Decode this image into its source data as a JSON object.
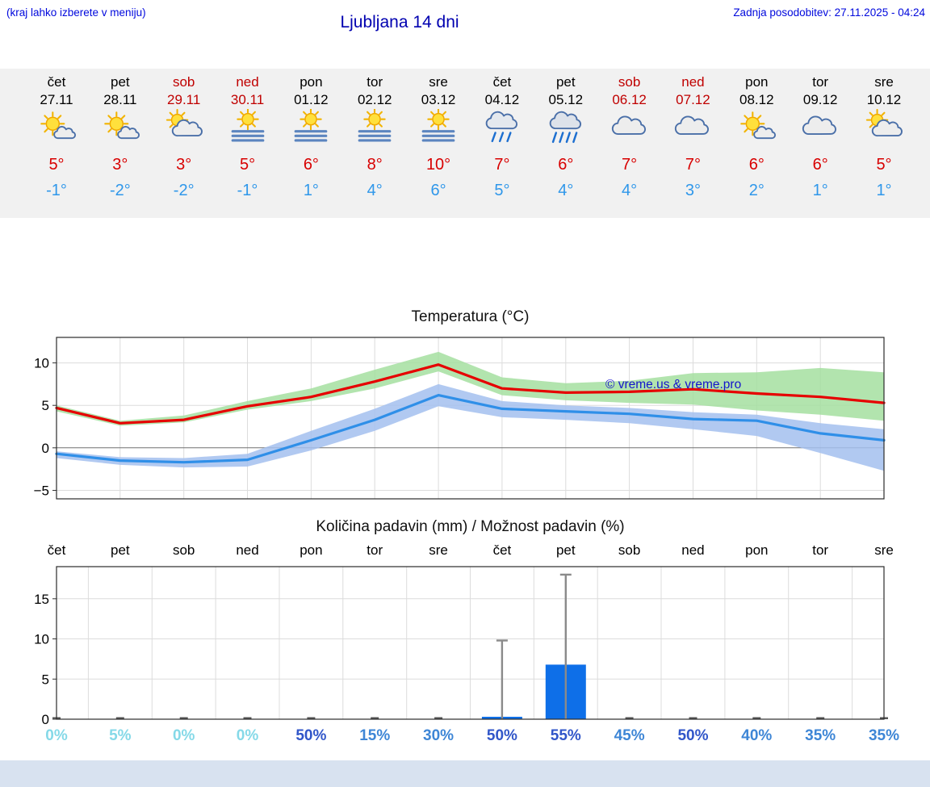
{
  "header": {
    "site_note": "(kraj lahko izberete v meniju)",
    "title": "Ljubljana 14 dni",
    "last_update": "Zadnja posodobitev: 27.11.2025 - 04:24"
  },
  "forecast_days": [
    {
      "name": "čet",
      "date": "27.11",
      "red": false,
      "icon": "sun-small-cloud",
      "high": "5°",
      "low": "-1°"
    },
    {
      "name": "pet",
      "date": "28.11",
      "red": false,
      "icon": "sun-small-cloud",
      "high": "3°",
      "low": "-2°"
    },
    {
      "name": "sob",
      "date": "29.11",
      "red": true,
      "icon": "cloud-sun",
      "high": "3°",
      "low": "-2°"
    },
    {
      "name": "ned",
      "date": "30.11",
      "red": true,
      "icon": "fog-sun",
      "high": "5°",
      "low": "-1°"
    },
    {
      "name": "pon",
      "date": "01.12",
      "red": false,
      "icon": "fog-sun",
      "high": "6°",
      "low": "1°"
    },
    {
      "name": "tor",
      "date": "02.12",
      "red": false,
      "icon": "fog-sun",
      "high": "8°",
      "low": "4°"
    },
    {
      "name": "sre",
      "date": "03.12",
      "red": false,
      "icon": "fog-sun",
      "high": "10°",
      "low": "6°"
    },
    {
      "name": "čet",
      "date": "04.12",
      "red": false,
      "icon": "rain",
      "high": "7°",
      "low": "5°"
    },
    {
      "name": "pet",
      "date": "05.12",
      "red": false,
      "icon": "heavy-rain",
      "high": "6°",
      "low": "4°"
    },
    {
      "name": "sob",
      "date": "06.12",
      "red": true,
      "icon": "cloud",
      "high": "7°",
      "low": "4°"
    },
    {
      "name": "ned",
      "date": "07.12",
      "red": true,
      "icon": "cloud",
      "high": "7°",
      "low": "3°"
    },
    {
      "name": "pon",
      "date": "08.12",
      "red": false,
      "icon": "sun-small-cloud",
      "high": "6°",
      "low": "2°"
    },
    {
      "name": "tor",
      "date": "09.12",
      "red": false,
      "icon": "cloud",
      "high": "6°",
      "low": "1°"
    },
    {
      "name": "sre",
      "date": "10.12",
      "red": false,
      "icon": "cloud-sun",
      "high": "5°",
      "low": "1°"
    }
  ],
  "chart_data": [
    {
      "type": "line",
      "title": "Temperatura (°C)",
      "ylim": [
        -6,
        13
      ],
      "yticks": [
        -5,
        0,
        5,
        10
      ],
      "grid": true,
      "watermark": "© vreme.us & vreme.pro",
      "series": [
        {
          "name": "max temperature",
          "color": "#e60000",
          "band_color": "#a5dfa0",
          "values": [
            4.7,
            2.9,
            3.3,
            4.9,
            6.0,
            7.8,
            9.8,
            7.0,
            6.5,
            6.6,
            6.9,
            6.4,
            6.0,
            5.3
          ],
          "band_upper": [
            5.0,
            3.2,
            3.8,
            5.5,
            7.0,
            9.2,
            11.3,
            8.3,
            7.6,
            7.9,
            8.8,
            8.9,
            9.4,
            8.9
          ],
          "band_lower": [
            4.3,
            2.6,
            3.0,
            4.5,
            5.5,
            7.0,
            9.0,
            6.2,
            5.6,
            5.3,
            5.1,
            4.4,
            3.9,
            3.2
          ]
        },
        {
          "name": "min temperature",
          "color": "#2f8fe8",
          "band_color": "#a3bfee",
          "values": [
            -0.7,
            -1.5,
            -1.7,
            -1.4,
            0.9,
            3.3,
            6.2,
            4.6,
            4.3,
            4.0,
            3.4,
            3.2,
            1.7,
            0.9
          ],
          "band_upper": [
            -0.4,
            -1.1,
            -1.2,
            -0.7,
            2.0,
            4.6,
            7.5,
            5.5,
            5.0,
            4.7,
            4.2,
            3.9,
            2.9,
            2.2
          ],
          "band_lower": [
            -1.2,
            -2.0,
            -2.3,
            -2.2,
            -0.3,
            2.0,
            4.9,
            3.6,
            3.3,
            2.9,
            2.2,
            1.4,
            -0.6,
            -2.7
          ]
        }
      ]
    },
    {
      "type": "bar",
      "title": "Količina padavin (mm) / Možnost padavin (%)",
      "categories": [
        "čet",
        "pet",
        "sob",
        "ned",
        "pon",
        "tor",
        "sre",
        "čet",
        "pet",
        "sob",
        "ned",
        "pon",
        "tor",
        "sre"
      ],
      "values": [
        0,
        0,
        0,
        0,
        0,
        0,
        0,
        0.3,
        6.8,
        0,
        0,
        0,
        0,
        0
      ],
      "whisker_max": [
        0,
        0,
        0,
        0,
        0,
        0,
        0,
        9.8,
        18,
        0,
        0,
        0,
        0,
        0
      ],
      "probabilities": [
        "0%",
        "5%",
        "0%",
        "0%",
        "50%",
        "15%",
        "30%",
        "50%",
        "55%",
        "45%",
        "50%",
        "40%",
        "35%",
        "35%"
      ],
      "ylim": [
        0,
        19
      ],
      "yticks": [
        0,
        5,
        10,
        15
      ],
      "bar_color": "#0e6fe8"
    }
  ],
  "colors": {
    "header_blue": "#0008dd",
    "title_blue": "#0000b0",
    "weekend_red": "#c00000",
    "high_temp_red": "#d80000",
    "low_temp_blue": "#2f97ea",
    "footer_band": "#d8e2f0",
    "whisker_gray": "#8a8a8a",
    "prob_low": "#85d9e8",
    "prob_mid": "#3e86d6",
    "prob_high": "#3156c9"
  }
}
